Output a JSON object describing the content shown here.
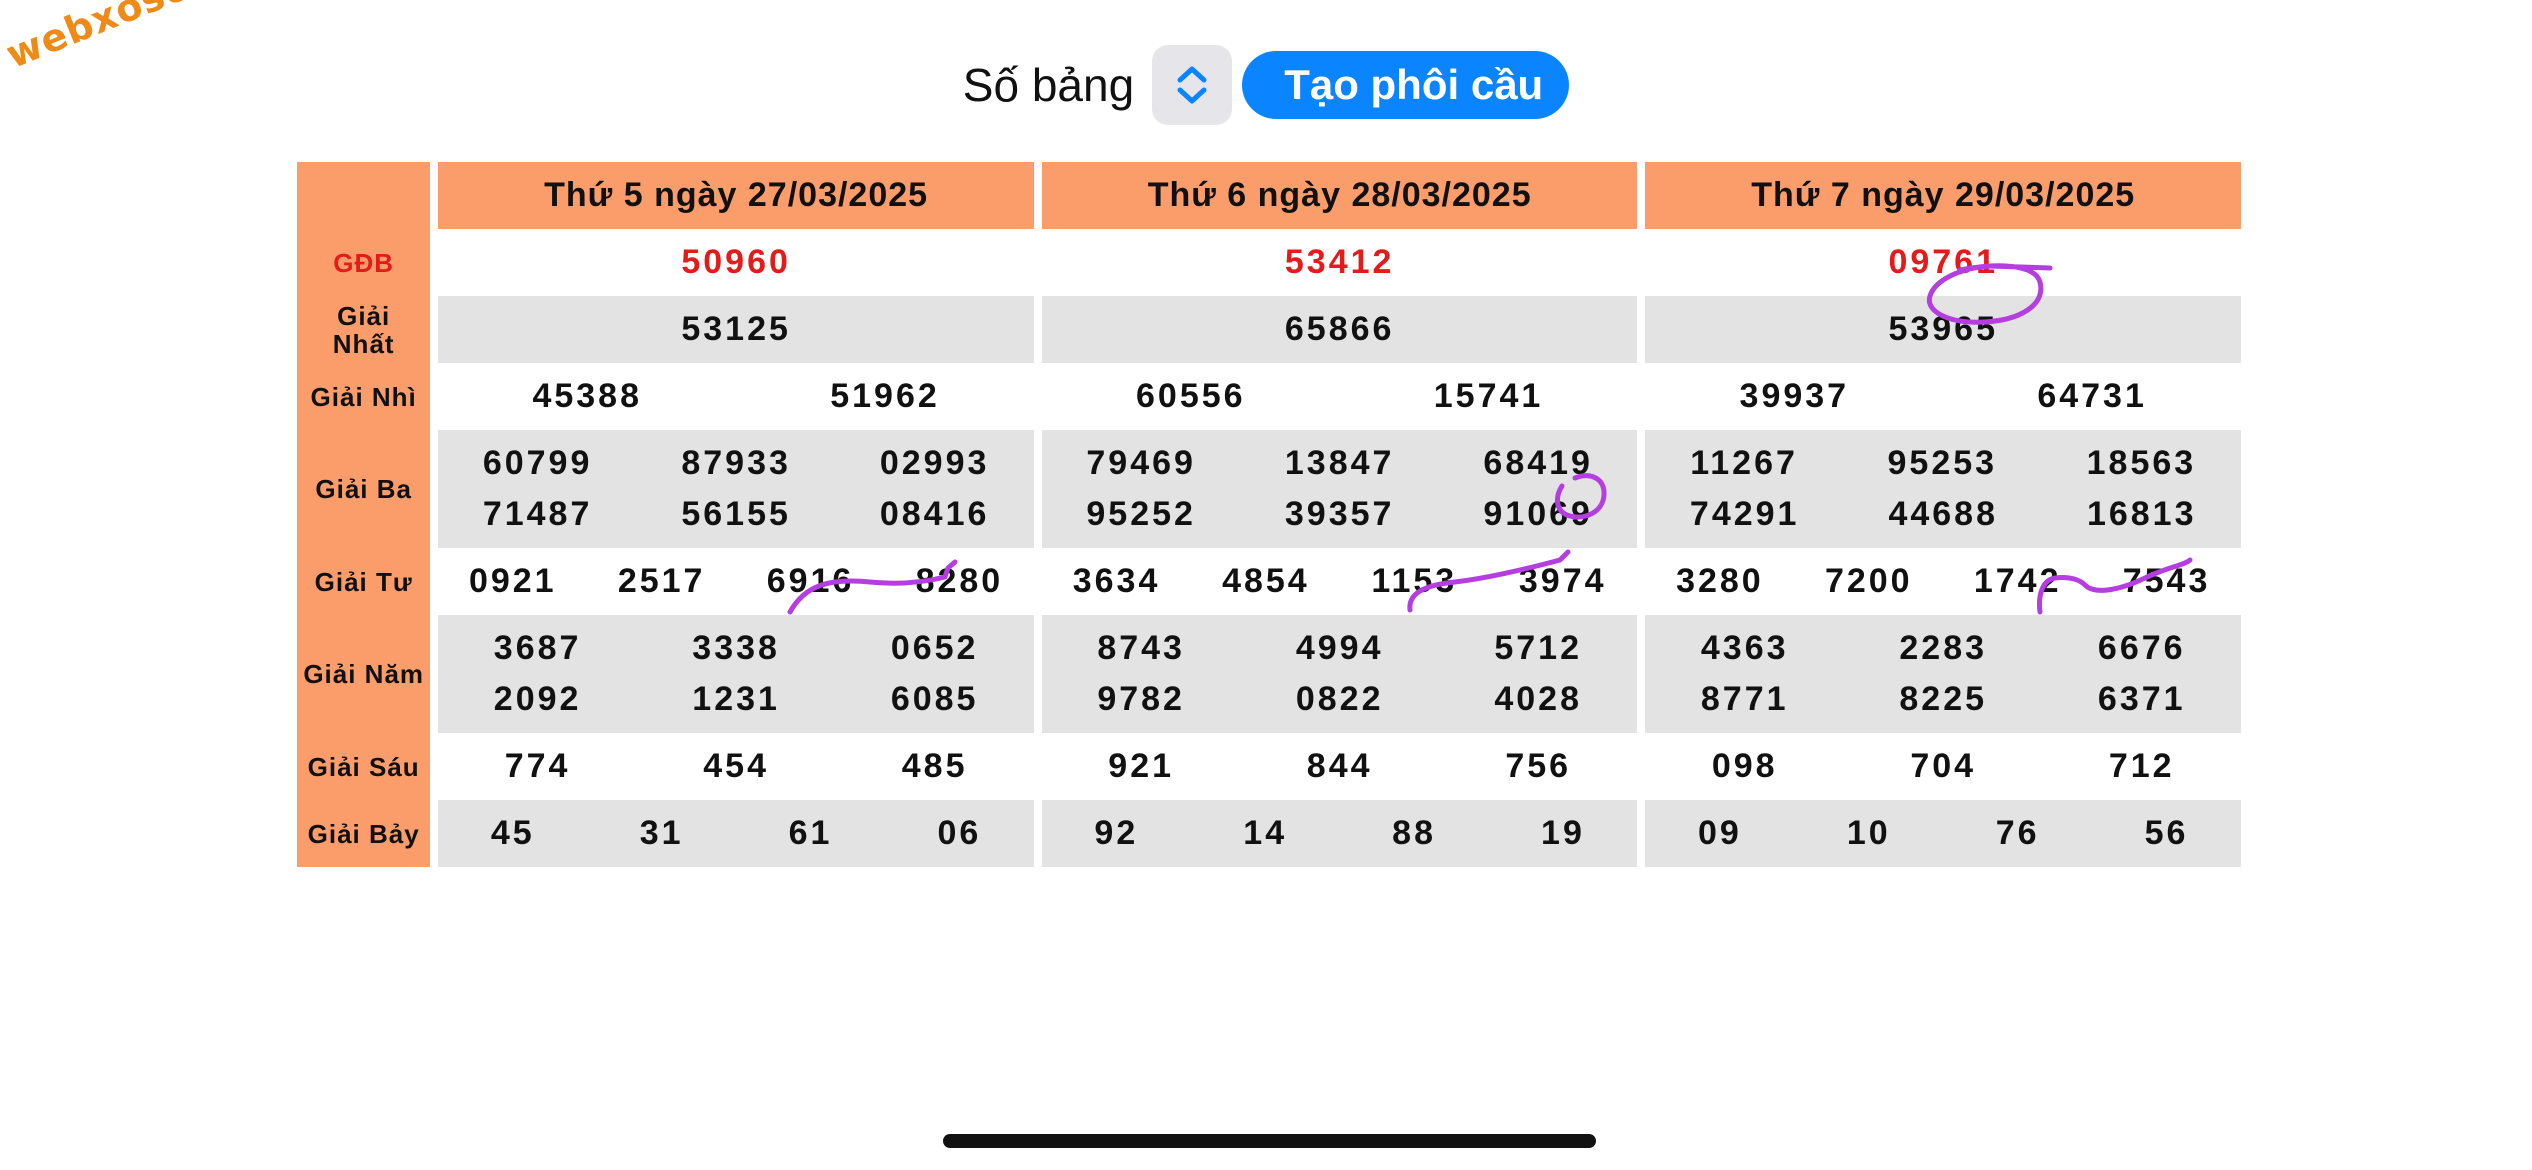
{
  "watermark": "webxoso.net",
  "controls": {
    "so_bang_label": "Số bảng",
    "create_button": "Tạo phôi cầu"
  },
  "labels": {
    "gdb": "GĐB",
    "nhat": "Giải Nhất",
    "nhi": "Giải Nhì",
    "ba": "Giải Ba",
    "tu": "Giải Tư",
    "nam": "Giải Năm",
    "sau": "Giải Sáu",
    "bay": "Giải Bảy"
  },
  "days": [
    {
      "header": "Thứ 5 ngày 27/03/2025",
      "gdb": "50960",
      "nhat": "53125",
      "nhi": [
        "45388",
        "51962"
      ],
      "ba": [
        [
          "60799",
          "87933",
          "02993"
        ],
        [
          "71487",
          "56155",
          "08416"
        ]
      ],
      "tu": [
        "0921",
        "2517",
        "6916",
        "8280"
      ],
      "nam": [
        [
          "3687",
          "3338",
          "0652"
        ],
        [
          "2092",
          "1231",
          "6085"
        ]
      ],
      "sau": [
        "774",
        "454",
        "485"
      ],
      "bay": [
        "45",
        "31",
        "61",
        "06"
      ]
    },
    {
      "header": "Thứ 6 ngày 28/03/2025",
      "gdb": "53412",
      "nhat": "65866",
      "nhi": [
        "60556",
        "15741"
      ],
      "ba": [
        [
          "79469",
          "13847",
          "68419"
        ],
        [
          "95252",
          "39357",
          "91069"
        ]
      ],
      "tu": [
        "3634",
        "4854",
        "1153",
        "3974"
      ],
      "nam": [
        [
          "8743",
          "4994",
          "5712"
        ],
        [
          "9782",
          "0822",
          "4028"
        ]
      ],
      "sau": [
        "921",
        "844",
        "756"
      ],
      "bay": [
        "92",
        "14",
        "88",
        "19"
      ]
    },
    {
      "header": "Thứ 7 ngày 29/03/2025",
      "gdb": "09761",
      "nhat": "53965",
      "nhi": [
        "39937",
        "64731"
      ],
      "ba": [
        [
          "11267",
          "95253",
          "18563"
        ],
        [
          "74291",
          "44688",
          "16813"
        ]
      ],
      "tu": [
        "3280",
        "7200",
        "1742",
        "7543"
      ],
      "nam": [
        [
          "4363",
          "2283",
          "6676"
        ],
        [
          "8771",
          "8225",
          "6371"
        ]
      ],
      "sau": [
        "098",
        "704",
        "712"
      ],
      "bay": [
        "09",
        "10",
        "76",
        "56"
      ]
    }
  ],
  "colors": {
    "header_bg": "#fb9c6b",
    "special_prize": "#e31b1b",
    "button": "#0a84ff",
    "annotation": "#b43ee0",
    "watermark": "#f08a17"
  }
}
